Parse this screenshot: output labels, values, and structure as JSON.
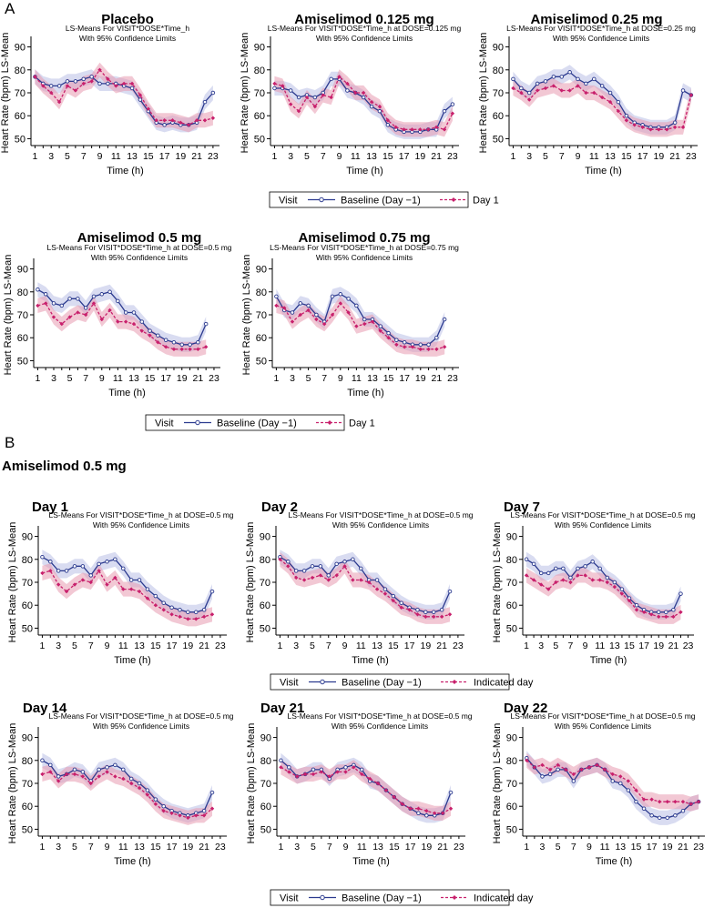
{
  "panel_labels": {
    "a": "A",
    "b": "B"
  },
  "section_b_title": "Amiselimod 0.5 mg",
  "common": {
    "x_ticks": [
      1,
      3,
      5,
      7,
      9,
      11,
      13,
      15,
      17,
      19,
      21,
      23
    ],
    "y_ticks": [
      50,
      60,
      70,
      80,
      90
    ],
    "xlabel": "Time (h)",
    "ylabel": "Heart Rate (bpm) LS-Mean",
    "subtitle2": "With 95% Confidence Limits",
    "ylim": [
      47,
      93
    ],
    "xlim": [
      0.5,
      23.8
    ]
  },
  "colors": {
    "baseline": "#2b3a8f",
    "baseline_band": "#b9bfe6",
    "comparison": "#c8206c",
    "comparison_band": "#e79ab0"
  },
  "legend_a": {
    "visit": "Visit",
    "baseline": "Baseline (Day −1)",
    "comparison": "Day 1"
  },
  "legend_b": {
    "visit": "Visit",
    "baseline": "Baseline (Day −1)",
    "comparison": "Indicated day"
  },
  "chart_data": [
    {
      "type": "line",
      "panel": "A",
      "heading": "Placebo",
      "subtitle": "LS-Means For VISIT*DOSE*Time_h",
      "x": [
        1,
        2,
        3,
        4,
        5,
        6,
        7,
        8,
        9,
        10,
        11,
        12,
        13,
        14,
        15,
        16,
        17,
        18,
        19,
        20,
        21,
        22,
        23
      ],
      "series": [
        {
          "name": "Baseline (Day −1)",
          "values": [
            77,
            74,
            73,
            73,
            75,
            75,
            76,
            77,
            74,
            74,
            74,
            73,
            72,
            67,
            62,
            57,
            56,
            57,
            56,
            56,
            57,
            66,
            70
          ]
        },
        {
          "name": "Day 1",
          "values": [
            77,
            73,
            70,
            66,
            73,
            71,
            74,
            75,
            80,
            76,
            73,
            74,
            74,
            69,
            63,
            58,
            58,
            58,
            57,
            56,
            58,
            58,
            59
          ]
        }
      ]
    },
    {
      "type": "line",
      "panel": "A",
      "heading": "Amiselimod 0.125 mg",
      "subtitle": "LS-Means For VISIT*DOSE*Time_h at DOSE=0.125 mg",
      "x": [
        1,
        2,
        3,
        4,
        5,
        6,
        7,
        8,
        9,
        10,
        11,
        12,
        13,
        14,
        15,
        16,
        17,
        18,
        19,
        20,
        21,
        22,
        23
      ],
      "series": [
        {
          "name": "Baseline (Day −1)",
          "values": [
            72,
            72,
            71,
            68,
            69,
            68,
            70,
            76,
            76,
            71,
            70,
            68,
            64,
            62,
            56,
            54,
            53,
            53,
            53,
            54,
            54,
            62,
            65
          ]
        },
        {
          "name": "Day 1",
          "values": [
            74,
            73,
            65,
            62,
            68,
            64,
            69,
            68,
            77,
            74,
            70,
            70,
            66,
            64,
            58,
            55,
            54,
            54,
            54,
            54,
            55,
            54,
            61
          ]
        }
      ]
    },
    {
      "type": "line",
      "panel": "A",
      "heading": "Amiselimod 0.25 mg",
      "subtitle": "LS-Means For VISIT*DOSE*Time_h at DOSE=0.25 mg",
      "x": [
        1,
        2,
        3,
        4,
        5,
        6,
        7,
        8,
        9,
        10,
        11,
        12,
        13,
        14,
        15,
        16,
        17,
        18,
        19,
        20,
        21,
        22,
        23
      ],
      "series": [
        {
          "name": "Baseline (Day −1)",
          "values": [
            76,
            72,
            70,
            74,
            75,
            77,
            77,
            79,
            76,
            74,
            76,
            73,
            70,
            66,
            60,
            57,
            56,
            55,
            55,
            55,
            57,
            71,
            69
          ]
        },
        {
          "name": "Day 1",
          "values": [
            72,
            70,
            67,
            71,
            72,
            73,
            71,
            71,
            73,
            70,
            70,
            68,
            66,
            62,
            58,
            56,
            55,
            54,
            54,
            54,
            55,
            55,
            69
          ]
        }
      ]
    },
    {
      "type": "line",
      "panel": "A",
      "heading": "Amiselimod 0.5 mg",
      "subtitle": "LS-Means For VISIT*DOSE*Time_h at DOSE=0.5 mg",
      "x": [
        1,
        2,
        3,
        4,
        5,
        6,
        7,
        8,
        9,
        10,
        11,
        12,
        13,
        14,
        15,
        16,
        17,
        18,
        19,
        20,
        21,
        22
      ],
      "series": [
        {
          "name": "Baseline (Day −1)",
          "values": [
            81,
            79,
            75,
            74,
            77,
            77,
            73,
            78,
            79,
            80,
            76,
            71,
            71,
            67,
            63,
            61,
            59,
            58,
            57,
            57,
            58,
            66
          ]
        },
        {
          "name": "Day 1",
          "values": [
            74,
            75,
            69,
            66,
            69,
            71,
            70,
            75,
            68,
            72,
            67,
            67,
            66,
            63,
            61,
            58,
            56,
            55,
            55,
            55,
            55,
            56
          ]
        }
      ]
    },
    {
      "type": "line",
      "panel": "A",
      "heading": "Amiselimod 0.75 mg",
      "subtitle": "LS-Means For VISIT*DOSE*Time_h at DOSE=0.75 mg",
      "x": [
        1,
        2,
        3,
        4,
        5,
        6,
        7,
        8,
        9,
        10,
        11,
        12,
        13,
        14,
        15,
        16,
        17,
        18,
        19,
        20,
        21,
        22
      ],
      "series": [
        {
          "name": "Baseline (Day −1)",
          "values": [
            78,
            72,
            71,
            75,
            74,
            70,
            67,
            78,
            79,
            77,
            74,
            68,
            68,
            65,
            62,
            59,
            58,
            57,
            57,
            57,
            60,
            68
          ]
        },
        {
          "name": "Day 1",
          "values": [
            74,
            73,
            67,
            70,
            72,
            68,
            66,
            70,
            75,
            71,
            65,
            66,
            67,
            63,
            60,
            57,
            56,
            56,
            55,
            55,
            55,
            56
          ]
        }
      ]
    },
    {
      "type": "line",
      "panel": "B",
      "heading": "Day 1",
      "subtitle": "LS-Means For VISIT*DOSE*Time_h at DOSE=0.5 mg",
      "x": [
        1,
        2,
        3,
        4,
        5,
        6,
        7,
        8,
        9,
        10,
        11,
        12,
        13,
        14,
        15,
        16,
        17,
        18,
        19,
        20,
        21,
        22
      ],
      "series": [
        {
          "name": "Baseline (Day −1)",
          "values": [
            81,
            79,
            75,
            75,
            77,
            77,
            73,
            78,
            79,
            80,
            76,
            71,
            71,
            67,
            64,
            61,
            59,
            58,
            57,
            57,
            58,
            66
          ]
        },
        {
          "name": "Day 1",
          "values": [
            74,
            75,
            69,
            66,
            69,
            71,
            70,
            75,
            69,
            72,
            67,
            67,
            66,
            63,
            60,
            58,
            56,
            55,
            54,
            54,
            55,
            56
          ]
        }
      ]
    },
    {
      "type": "line",
      "panel": "B",
      "heading": "Day 2",
      "subtitle": "LS-Means For VISIT*DOSE*Time_h at DOSE=0.5 mg",
      "x": [
        1,
        2,
        3,
        4,
        5,
        6,
        7,
        8,
        9,
        10,
        11,
        12,
        13,
        14,
        15,
        16,
        17,
        18,
        19,
        20,
        21,
        22
      ],
      "series": [
        {
          "name": "Baseline (Day −1)",
          "values": [
            81,
            79,
            75,
            75,
            77,
            77,
            73,
            78,
            79,
            80,
            76,
            71,
            71,
            67,
            64,
            61,
            59,
            58,
            57,
            57,
            58,
            66
          ]
        },
        {
          "name": "Day 2",
          "values": [
            80,
            77,
            72,
            71,
            72,
            73,
            71,
            73,
            77,
            71,
            71,
            70,
            67,
            65,
            62,
            59,
            58,
            56,
            55,
            55,
            55,
            56
          ]
        }
      ]
    },
    {
      "type": "line",
      "panel": "B",
      "heading": "Day 7",
      "subtitle": "LS-Means For VISIT*DOSE*Time_h at DOSE=0.5 mg",
      "x": [
        1,
        2,
        3,
        4,
        5,
        6,
        7,
        8,
        9,
        10,
        11,
        12,
        13,
        14,
        15,
        16,
        17,
        18,
        19,
        20,
        21,
        22
      ],
      "series": [
        {
          "name": "Baseline (Day −1)",
          "values": [
            80,
            78,
            74,
            74,
            76,
            76,
            72,
            76,
            77,
            79,
            76,
            72,
            70,
            67,
            63,
            60,
            58,
            57,
            57,
            57,
            58,
            65
          ]
        },
        {
          "name": "Day 7",
          "values": [
            73,
            71,
            69,
            67,
            70,
            71,
            70,
            73,
            73,
            71,
            71,
            70,
            68,
            65,
            62,
            58,
            57,
            56,
            55,
            55,
            55,
            57
          ]
        }
      ]
    },
    {
      "type": "line",
      "panel": "B",
      "heading": "Day 14",
      "subtitle": "LS-Means For VISIT*DOSE*Time_h at DOSE=0.5 mg",
      "x": [
        1,
        2,
        3,
        4,
        5,
        6,
        7,
        8,
        9,
        10,
        11,
        12,
        13,
        14,
        15,
        16,
        17,
        18,
        19,
        20,
        21,
        22
      ],
      "series": [
        {
          "name": "Baseline (Day −1)",
          "values": [
            80,
            78,
            73,
            74,
            76,
            75,
            71,
            76,
            77,
            78,
            76,
            72,
            70,
            67,
            63,
            60,
            58,
            57,
            56,
            57,
            58,
            66
          ]
        },
        {
          "name": "Day 14",
          "values": [
            74,
            75,
            71,
            74,
            74,
            73,
            70,
            73,
            75,
            73,
            72,
            70,
            68,
            65,
            61,
            58,
            57,
            56,
            55,
            56,
            56,
            59
          ]
        }
      ]
    },
    {
      "type": "line",
      "panel": "B",
      "heading": "Day 21",
      "subtitle": "LS-Means For VISIT*DOSE*Time_h at DOSE=0.5 mg",
      "x": [
        1,
        2,
        3,
        4,
        5,
        6,
        7,
        8,
        9,
        10,
        11,
        12,
        13,
        14,
        15,
        16,
        17,
        18,
        19,
        20,
        21,
        22
      ],
      "series": [
        {
          "name": "Baseline (Day −1)",
          "values": [
            80,
            77,
            73,
            74,
            76,
            76,
            72,
            76,
            77,
            78,
            76,
            71,
            70,
            67,
            64,
            61,
            59,
            57,
            56,
            56,
            57,
            66
          ]
        },
        {
          "name": "Day 21",
          "values": [
            77,
            75,
            73,
            74,
            74,
            75,
            73,
            75,
            75,
            77,
            74,
            72,
            70,
            67,
            64,
            61,
            59,
            59,
            58,
            57,
            57,
            59
          ]
        }
      ]
    },
    {
      "type": "line",
      "panel": "B",
      "heading": "Day 22",
      "subtitle": "LS-Means For VISIT*DOSE*Time_h at DOSE=0.5 mg",
      "x": [
        1,
        2,
        3,
        4,
        5,
        6,
        7,
        8,
        9,
        10,
        11,
        12,
        13,
        14,
        15,
        16,
        17,
        18,
        19,
        20,
        21,
        22,
        23
      ],
      "series": [
        {
          "name": "Baseline (Day −1)",
          "values": [
            81,
            77,
            73,
            74,
            76,
            76,
            71,
            76,
            77,
            78,
            76,
            71,
            70,
            67,
            62,
            59,
            56,
            55,
            55,
            56,
            58,
            61,
            62
          ]
        },
        {
          "name": "Day 22",
          "values": [
            80,
            77,
            78,
            76,
            78,
            76,
            74,
            76,
            77,
            78,
            76,
            74,
            73,
            71,
            67,
            63,
            63,
            62,
            62,
            62,
            62,
            61,
            62
          ]
        }
      ]
    }
  ]
}
